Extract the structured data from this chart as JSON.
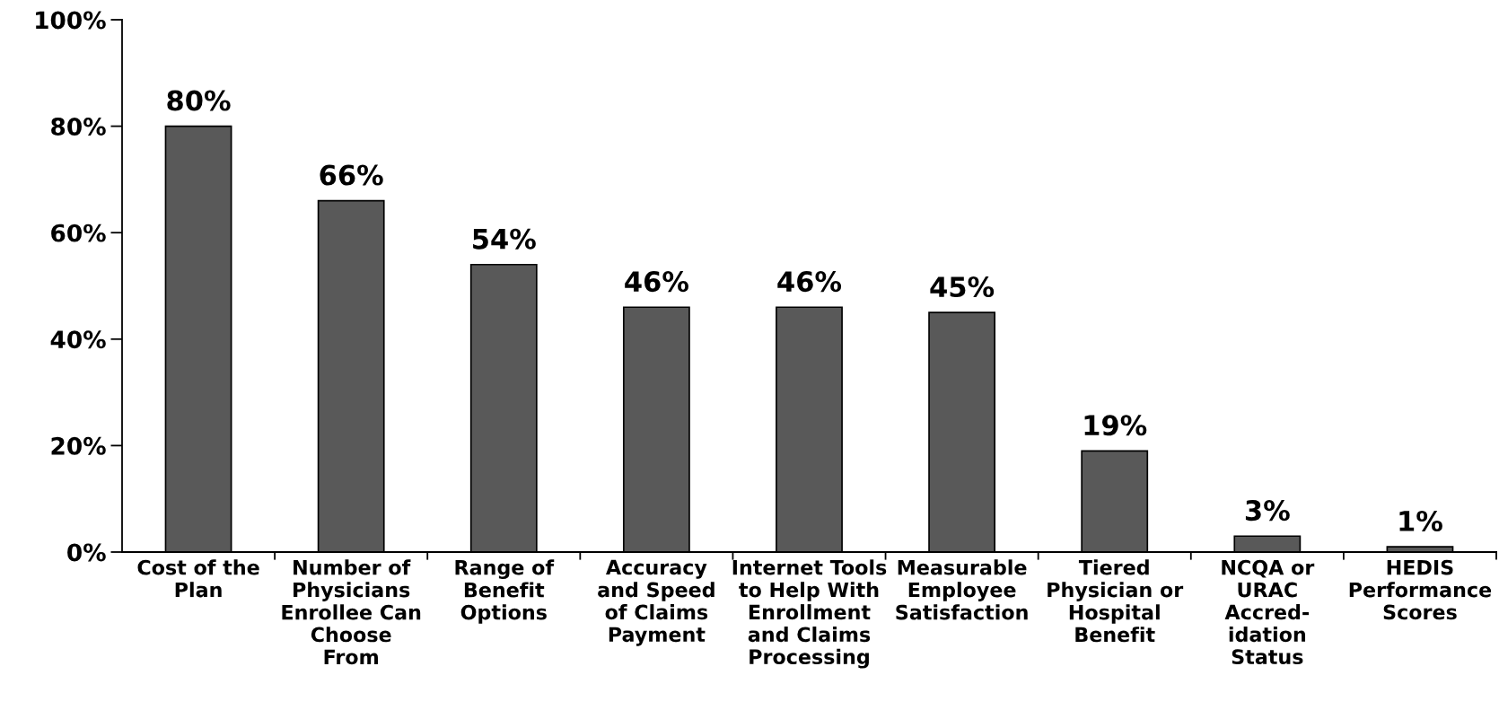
{
  "chart_data": {
    "type": "bar",
    "categories": [
      "Cost of the\nPlan",
      "Number of\nPhysicians\nEnrollee Can\nChoose\nFrom",
      "Range of\nBenefit\nOptions",
      "Accuracy\nand Speed\nof Claims\nPayment",
      "Internet Tools\nto Help With\nEnrollment\nand Claims\nProcessing",
      "Measurable\nEmployee\nSatisfaction",
      "Tiered\nPhysician or\nHospital\nBenefit",
      "NCQA or\nURAC\nAccred-\nidation\nStatus",
      "HEDIS\nPerformance\nScores"
    ],
    "values": [
      80,
      66,
      54,
      46,
      46,
      45,
      19,
      3,
      1
    ],
    "value_labels": [
      "80%",
      "66%",
      "54%",
      "46%",
      "46%",
      "45%",
      "19%",
      "3%",
      "1%"
    ],
    "color": "#595959",
    "ylim": [
      0,
      100
    ],
    "yticks": [
      {
        "value": 0,
        "label": "0%"
      },
      {
        "value": 20,
        "label": "20%"
      },
      {
        "value": 40,
        "label": "40%"
      },
      {
        "value": 60,
        "label": "60%"
      },
      {
        "value": 80,
        "label": "80%"
      },
      {
        "value": 100,
        "label": "100%"
      }
    ],
    "grid": false
  }
}
